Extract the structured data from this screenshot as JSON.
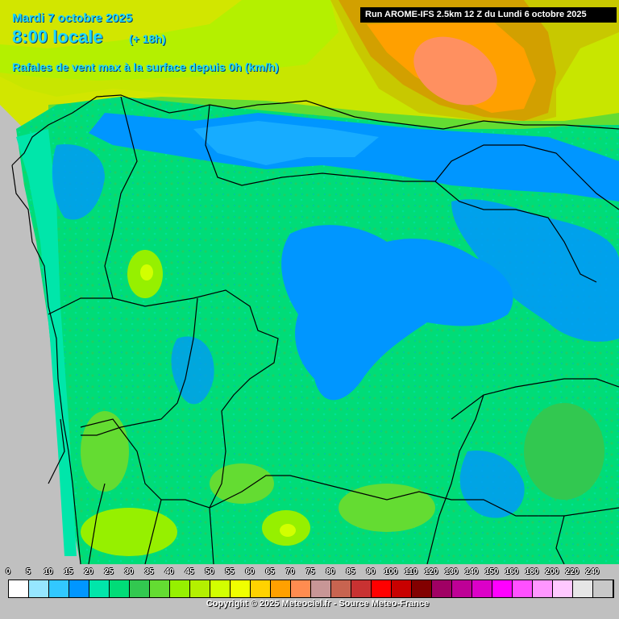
{
  "header": {
    "date": "Mardi 7 octobre 2025",
    "time": "8:00 locale",
    "lead": "(+ 18h)",
    "parameter": "Rafales de vent max à la surface depuis 0h (km/h)",
    "run": "Run AROME-IFS 2.5km 12 Z du Lundi 6 octobre 2025"
  },
  "legend": {
    "unit": "km/h",
    "labels": [
      "0",
      "5",
      "10",
      "15",
      "20",
      "25",
      "30",
      "35",
      "40",
      "45",
      "50",
      "55",
      "60",
      "65",
      "70",
      "75",
      "80",
      "85",
      "90",
      "100",
      "110",
      "120",
      "130",
      "140",
      "150",
      "160",
      "180",
      "200",
      "220",
      "240"
    ],
    "colors": [
      "#ffffff",
      "#96e6ff",
      "#32c8ff",
      "#0096ff",
      "#00e6aa",
      "#00dc78",
      "#32c850",
      "#64dc32",
      "#96f000",
      "#b4f000",
      "#d2ff00",
      "#f0ff00",
      "#ffd200",
      "#ffa000",
      "#ff8c50",
      "#c89696",
      "#c86450",
      "#c83232",
      "#ff0000",
      "#c80000",
      "#820000",
      "#a00064",
      "#be0096",
      "#dc00c8",
      "#ff00ff",
      "#ff50ff",
      "#ff96ff",
      "#ffc8ff",
      "#e6e6e6",
      "#c8c8c8"
    ]
  },
  "map": {
    "region": "Nord-ouest de la péninsule Ibérique",
    "dominant_gust_kmh": [
      20,
      25
    ],
    "max_gust_offshore_kmh": [
      60,
      70
    ],
    "colors": {
      "ocean_outside": "#c0c0c0",
      "gust_15": "#0096ff",
      "gust_20": "#00e6aa",
      "gust_25": "#00dc78",
      "gust_30": "#32c850",
      "gust_35": "#64dc32",
      "gust_45": "#b4f000",
      "gust_55": "#d2e600",
      "gust_60": "#d2a000",
      "gust_65": "#ffa000",
      "gust_70": "#ff9060",
      "border": "#000000"
    }
  },
  "footer": {
    "copyright": "Copyright © 2025 Meteociel.fr - Source Meteo-France"
  }
}
